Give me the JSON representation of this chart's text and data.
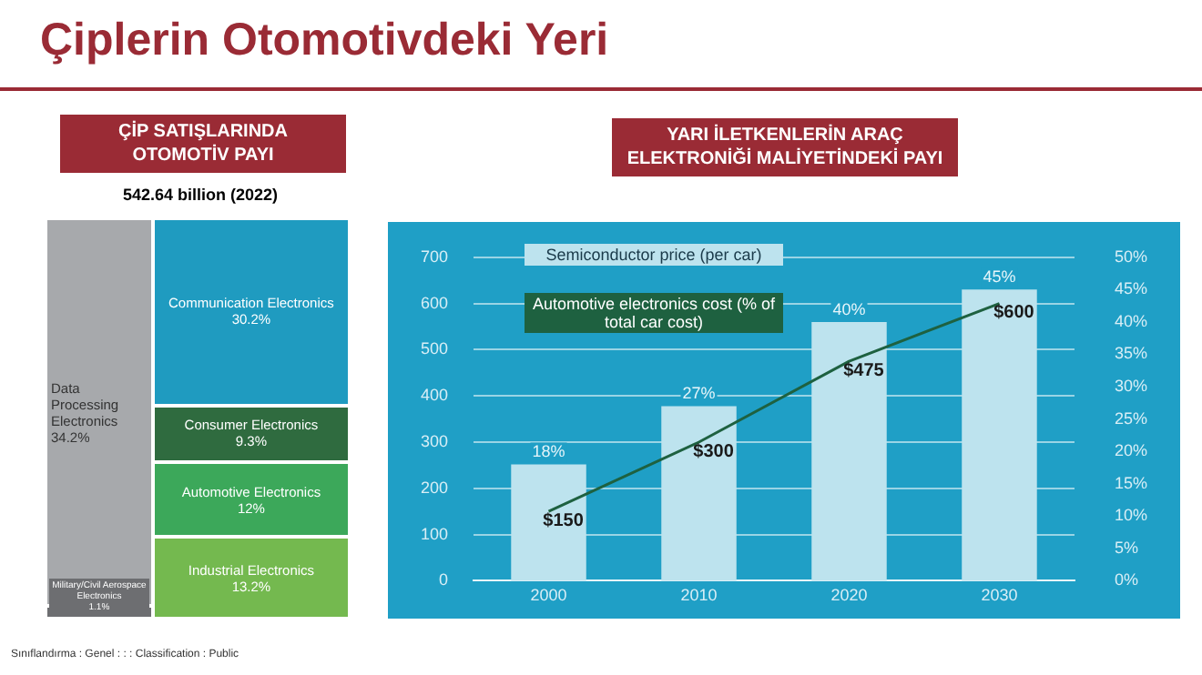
{
  "chart_data": [
    {
      "type": "other",
      "title": "ÇİP SATIŞLARINDA OTOMOTİV PAYI",
      "subtitle": "542.64 billion (2022)",
      "annotations": [
        "Çiplerin Otomotivdeki Yeri",
        "Sınıflandırma : Genel : : : Classification : Public"
      ],
      "categories": [
        "Data Processing Electronics",
        "Military/Civil Aerospace Electronics",
        "Communication Electronics",
        "Consumer Electronics",
        "Automotive Electronics",
        "Industrial Electronics"
      ],
      "values": [
        34.2,
        1.1,
        30.2,
        9.3,
        12,
        13.2
      ],
      "value_labels": [
        "34.2%",
        "1.1%",
        "30.2%",
        "9.3%",
        "12%",
        "13.2%"
      ],
      "colors": [
        "#a7a9ac",
        "#6d6e71",
        "#1f9bc0",
        "#2f6b3f",
        "#3ca85a",
        "#74b94f"
      ]
    },
    {
      "type": "bar",
      "title": "YARI İLETKENLERİN ARAÇ ELEKTRONİĞİ MALİYETİNDEKİ PAYI",
      "categories": [
        "2000",
        "2010",
        "2020",
        "2030"
      ],
      "series": [
        {
          "name": "Semiconductor price (per car)",
          "type": "bar",
          "axis": "y2",
          "color": "#bde3ee",
          "values": [
            18,
            27,
            40,
            45
          ],
          "value_labels": [
            "18%",
            "27%",
            "40%",
            "45%"
          ]
        },
        {
          "name": "Automotive electronics cost (% of total car cost)",
          "type": "line",
          "color": "#1e6140",
          "values": [
            150,
            300,
            475,
            600
          ],
          "value_labels": [
            "$150",
            "$300",
            "$475",
            "$600"
          ]
        }
      ],
      "ylim": [
        0,
        700
      ],
      "yticks": [
        0,
        100,
        200,
        300,
        400,
        500,
        600,
        700
      ],
      "y2lim": [
        0,
        50
      ],
      "y2ticks": [
        {
          "value": 0,
          "label": "0%"
        },
        {
          "value": 5,
          "label": "5%"
        },
        {
          "value": 10,
          "label": "10%"
        },
        {
          "value": 15,
          "label": "15%"
        },
        {
          "value": 20,
          "label": "20%"
        },
        {
          "value": 25,
          "label": "25%"
        },
        {
          "value": 30,
          "label": "30%"
        },
        {
          "value": 35,
          "label": "35%"
        },
        {
          "value": 40,
          "label": "40%"
        },
        {
          "value": 45,
          "label": "45%"
        },
        {
          "value": 50,
          "label": "50%"
        }
      ],
      "grid": "y",
      "legend": "top left"
    }
  ]
}
